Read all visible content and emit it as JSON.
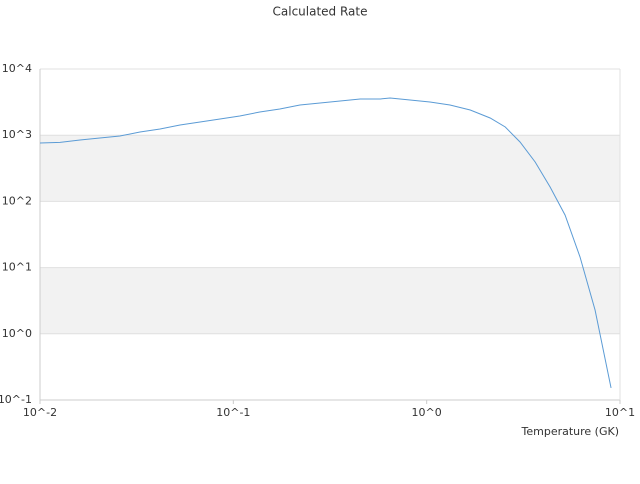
{
  "chart_data": {
    "type": "line",
    "title": "Calculated Rate",
    "x_label": "Temperature (GK)",
    "x": [
      0.01,
      0.0127,
      0.0161,
      0.0204,
      0.0259,
      0.0329,
      0.0418,
      0.053,
      0.0673,
      0.0853,
      0.108,
      0.137,
      0.174,
      0.221,
      0.281,
      0.357,
      0.453,
      0.574,
      0.647,
      0.82,
      1.04,
      1.32,
      1.68,
      2.13,
      2.55,
      3.04,
      3.64,
      4.35,
      5.2,
      6.21,
      7.43,
      8.99
    ],
    "values": [
      762,
      780,
      845,
      907,
      973,
      1117,
      1241,
      1426,
      1582,
      1757,
      1950,
      2240,
      2490,
      2860,
      3060,
      3290,
      3520,
      3520,
      3650,
      3400,
      3170,
      2860,
      2400,
      1820,
      1330,
      790,
      394,
      165,
      62,
      14.5,
      2.29,
      0.152
    ],
    "color": "#5b9bd5",
    "xlog": true,
    "ylog": true,
    "xlim": [
      0.01,
      10
    ],
    "ylim": [
      0.1,
      10000
    ],
    "xticks": [
      {
        "value": 0.01,
        "label": "10^-2"
      },
      {
        "value": 0.1,
        "label": "10^-1"
      },
      {
        "value": 1,
        "label": "10^0"
      },
      {
        "value": 10,
        "label": "10^1"
      }
    ],
    "yticks": [
      {
        "value": 0.1,
        "label": "10^-1"
      },
      {
        "value": 1,
        "label": "10^0"
      },
      {
        "value": 10,
        "label": "10^1"
      },
      {
        "value": 100,
        "label": "10^2"
      },
      {
        "value": 1000,
        "label": "10^3"
      },
      {
        "value": 10000,
        "label": "10^4"
      }
    ],
    "grid": true,
    "grid_bands": true
  }
}
